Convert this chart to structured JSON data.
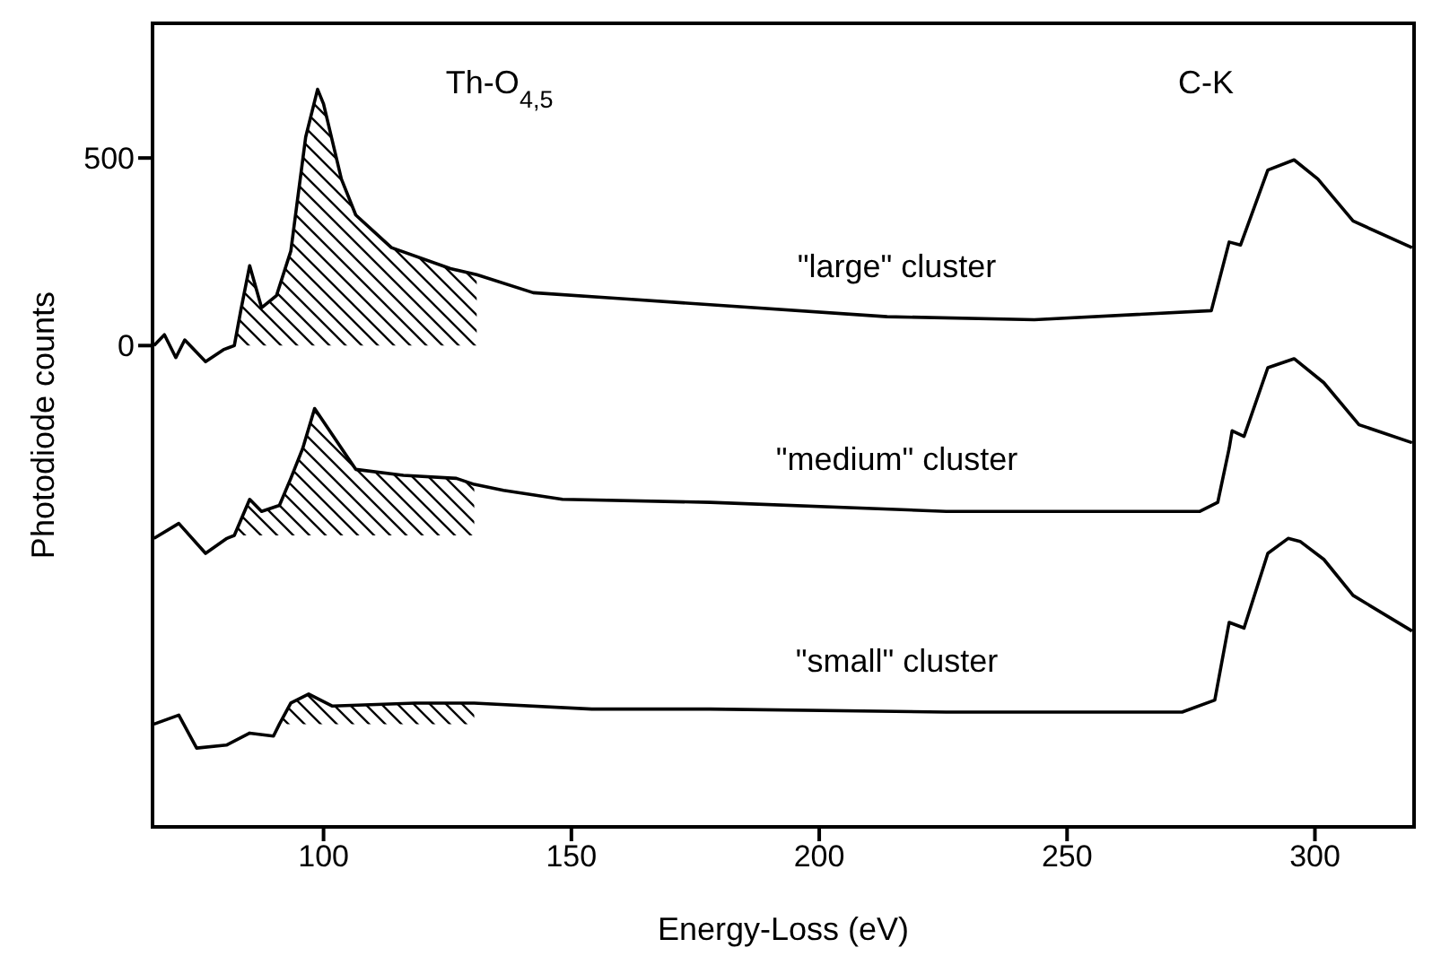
{
  "chart_data": {
    "type": "line",
    "xlabel": "Energy-Loss (eV)",
    "ylabel": "Photodiode counts",
    "xlim": [
      65.5,
      320
    ],
    "xticks": [
      100,
      150,
      200,
      250,
      300
    ],
    "ylim": [
      -1283,
      859
    ],
    "yticks": [
      0,
      500
    ],
    "marker": "none",
    "line_style": "solid",
    "annotations": [
      "Th-O$_{4,5}$",
      "C-K"
    ],
    "series": [
      {
        "name": "\"large\" cluster",
        "color": "#000000",
        "x": [
          65.8,
          67.9,
          70.2,
          72.0,
          76.2,
          79.8,
          82,
          83.3,
          85.1,
          87.5,
          90.5,
          93.4,
          96.4,
          98.8,
          100,
          103.6,
          106.5,
          113.7,
          125.6,
          130.9,
          142.3,
          160.1,
          178,
          213.7,
          243.4,
          279.1,
          282.7,
          285,
          290.5,
          295.8,
          300.6,
          307.7,
          319.6
        ],
        "values": [
          0,
          29,
          -32,
          15,
          -43,
          -11,
          0,
          93,
          213,
          101,
          133,
          252,
          556,
          683,
          644,
          444,
          348,
          261,
          205,
          189,
          141,
          125,
          109,
          77,
          69,
          93,
          276,
          268,
          468,
          495,
          444,
          332,
          261
        ],
        "lower": [
          null,
          null,
          null,
          null,
          null,
          null,
          0,
          0,
          0,
          0,
          0,
          0,
          0,
          0,
          0,
          0,
          0,
          0,
          0,
          0,
          null,
          null,
          null,
          null,
          null,
          null,
          null,
          null,
          null,
          null,
          null,
          null,
          null
        ],
        "upper": [
          null,
          null,
          null,
          null,
          null,
          null,
          0,
          93,
          213,
          101,
          133,
          252,
          556,
          683,
          644,
          444,
          348,
          261,
          205,
          189,
          null,
          null,
          null,
          null,
          null,
          null,
          null,
          null,
          null,
          null,
          null,
          null,
          null
        ]
      },
      {
        "name": "\"medium\" cluster",
        "color": "#000000",
        "x": [
          65.8,
          70.8,
          76.2,
          80.5,
          82,
          85.1,
          87.5,
          91.1,
          93.4,
          95.8,
          98.2,
          106.5,
          116.1,
          126.8,
          130.4,
          136.3,
          148.2,
          178,
          225.6,
          276.8,
          280.4,
          282.7,
          283.3,
          285.7,
          290.5,
          295.8,
          301.8,
          308.9,
          319.6
        ],
        "values": [
          -514,
          -474,
          -554,
          -514,
          -506,
          -410,
          -442,
          -426,
          -354,
          -274,
          -168,
          -330,
          -346,
          -354,
          -370,
          -386,
          -410,
          -418,
          -442,
          -442,
          -418,
          -274,
          -227,
          -242,
          -59,
          -35,
          -99,
          -211,
          -259
        ],
        "lower": [
          null,
          null,
          null,
          null,
          -506,
          -506,
          -506,
          -506,
          -506,
          -506,
          -506,
          -506,
          -506,
          -506,
          -506,
          null,
          null,
          null,
          null,
          null,
          null,
          null,
          null,
          null,
          null,
          null,
          null,
          null,
          null
        ],
        "upper": [
          null,
          null,
          null,
          null,
          -506,
          -410,
          -442,
          -426,
          -354,
          -274,
          -168,
          -330,
          -346,
          -354,
          -370,
          null,
          null,
          null,
          null,
          null,
          null,
          null,
          null,
          null,
          null,
          null,
          null,
          null,
          null
        ]
      },
      {
        "name": "\"small\" cluster",
        "color": "#000000",
        "x": [
          65.8,
          70.8,
          74.4,
          80.4,
          85.1,
          89.9,
          91.1,
          93.4,
          97,
          101.8,
          118.4,
          130.4,
          154.1,
          178,
          225.6,
          273.2,
          279.8,
          282.7,
          285.7,
          290.5,
          294.6,
          297,
          301.8,
          307.7,
          319.6
        ],
        "values": [
          -1009,
          -985,
          -1073,
          -1065,
          -1033,
          -1041,
          -1009,
          -953,
          -929,
          -961,
          -953,
          -953,
          -969,
          -969,
          -977,
          -977,
          -945,
          -738,
          -753,
          -554,
          -514,
          -522,
          -570,
          -666,
          -761
        ],
        "lower": [
          null,
          null,
          null,
          null,
          null,
          null,
          -1009,
          -1009,
          -1009,
          -1009,
          -1009,
          -1009,
          null,
          null,
          null,
          null,
          null,
          null,
          null,
          null,
          null,
          null,
          null,
          null,
          null
        ],
        "upper": [
          null,
          null,
          null,
          null,
          null,
          null,
          -1009,
          -953,
          -929,
          -961,
          -953,
          -953,
          null,
          null,
          null,
          null,
          null,
          null,
          null,
          null,
          null,
          null,
          null,
          null,
          null
        ]
      }
    ]
  }
}
